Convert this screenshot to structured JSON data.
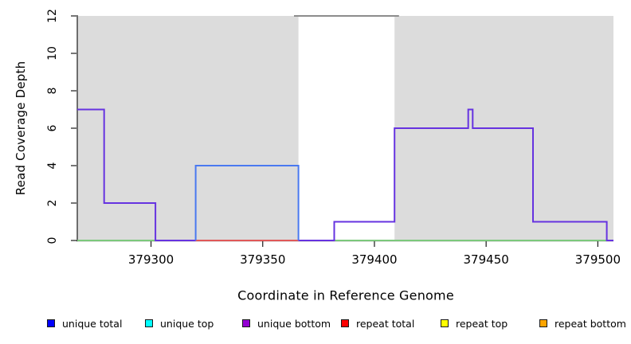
{
  "chart_data": {
    "type": "line",
    "subtype": "step-coverage-plot",
    "title": "",
    "xlabel": "Coordinate in Reference Genome",
    "ylabel": "Read Coverage Depth",
    "xlim": [
      379267,
      379507
    ],
    "ylim": [
      0,
      12
    ],
    "xticks": [
      379300,
      379350,
      379400,
      379450,
      379500
    ],
    "yticks": [
      0,
      2,
      4,
      6,
      8,
      10,
      12
    ],
    "grid": false,
    "legend_position": "bottom",
    "background_color": "#ffffff",
    "shaded_region_color": "#dcdcdc",
    "shaded_regions": [
      {
        "name": "left-shaded-region",
        "x0": 379267,
        "x1": 379366
      },
      {
        "name": "right-shaded-region",
        "x0": 379409,
        "x1": 379507
      }
    ],
    "gap_top_line": {
      "x0": 379364,
      "x1": 379411,
      "y": 12,
      "color": "#8c8c8c"
    },
    "series": [
      {
        "name": "zero-baseline",
        "draw_color": "#7cc87c",
        "points": [
          [
            379267,
            0
          ],
          [
            379507,
            0
          ]
        ]
      },
      {
        "name": "unique bottom",
        "draw_color": "#6633e0",
        "points": [
          [
            379267,
            7
          ],
          [
            379279,
            7
          ],
          [
            379279,
            2
          ],
          [
            379302,
            2
          ],
          [
            379302,
            0
          ],
          [
            379382,
            0
          ],
          [
            379382,
            1
          ],
          [
            379409,
            1
          ],
          [
            379409,
            6
          ],
          [
            379442,
            6
          ],
          [
            379442,
            7
          ],
          [
            379444,
            7
          ],
          [
            379444,
            6
          ],
          [
            379471,
            6
          ],
          [
            379471,
            1
          ],
          [
            379504,
            1
          ],
          [
            379504,
            0
          ],
          [
            379507,
            0
          ]
        ]
      },
      {
        "name": "repeat total",
        "draw_color": "#e05858",
        "points": [
          [
            379320,
            0
          ],
          [
            379366,
            0
          ]
        ]
      },
      {
        "name": "unique total",
        "draw_color": "#4a79f0",
        "points": [
          [
            379320,
            0
          ],
          [
            379320,
            4
          ],
          [
            379366,
            4
          ],
          [
            379366,
            0
          ]
        ]
      }
    ],
    "legend": [
      {
        "label": "unique total",
        "color": "#0000ff"
      },
      {
        "label": "unique top",
        "color": "#00ffff"
      },
      {
        "label": "unique bottom",
        "color": "#9400d3"
      },
      {
        "label": "repeat total",
        "color": "#ff0000"
      },
      {
        "label": "repeat top",
        "color": "#ffff00"
      },
      {
        "label": "repeat bottom",
        "color": "#ffa500"
      }
    ]
  }
}
